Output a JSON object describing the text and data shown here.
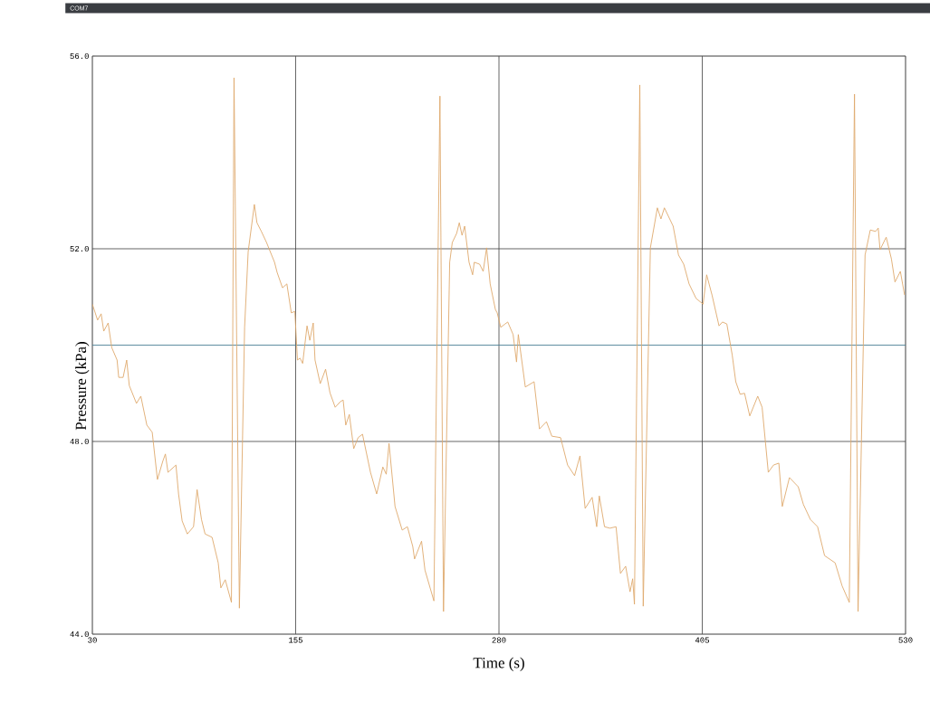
{
  "chart_data": {
    "type": "line",
    "title": "COM7",
    "xlabel": "Time (s)",
    "ylabel": "Pressure (kPa)",
    "xlim": [
      30,
      530
    ],
    "ylim": [
      44,
      56
    ],
    "xticks": [
      30,
      155,
      280,
      405,
      530
    ],
    "yticks": [
      {
        "value": 44,
        "label": "44.0"
      },
      {
        "value": 48,
        "label": "48.0"
      },
      {
        "value": 52,
        "label": "52.0"
      },
      {
        "value": 56,
        "label": "56.0"
      }
    ],
    "grid": true,
    "line_style": "solid",
    "series": [
      {
        "color": "#4a7f95",
        "x": [
          30,
          530
        ],
        "values": [
          50,
          50
        ]
      },
      {
        "color": "#dfa96c",
        "x": [
          30,
          33.2,
          35.4,
          37.0,
          39.7,
          41.9,
          45.2,
          46.2,
          48.9,
          51.1,
          52.7,
          57.1,
          59.8,
          63.5,
          66.8,
          70.0,
          73.3,
          74.9,
          76.5,
          81.4,
          83.0,
          85.2,
          88.4,
          92.2,
          94.4,
          97.1,
          99.3,
          103.6,
          107.4,
          109.0,
          111.7,
          115.5,
          117.1,
          120.4,
          123.6,
          125.8,
          129.6,
          131.2,
          133.9,
          137.1,
          142.0,
          143.6,
          146.9,
          149.6,
          152.3,
          154.5,
          156.1,
          157.7,
          159.3,
          162.0,
          163.7,
          165.8,
          166.9,
          170.1,
          173.4,
          176.1,
          179.3,
          182.6,
          184.2,
          185.8,
          188.0,
          190.7,
          193.4,
          196.1,
          201.0,
          204.8,
          208.6,
          210.7,
          212.4,
          216.1,
          220.5,
          223.7,
          227.0,
          228.1,
          232.4,
          234.5,
          240.0,
          243.7,
          245.9,
          249.7,
          251.3,
          254.0,
          255.6,
          257.3,
          258.9,
          261.6,
          263.8,
          264.8,
          268.1,
          270.3,
          272.4,
          274.6,
          277.8,
          278.9,
          281.1,
          283.8,
          285.4,
          288.7,
          290.8,
          291.9,
          296.2,
          301.6,
          304.9,
          309.2,
          312.5,
          317.9,
          322.2,
          326.5,
          329.8,
          333.0,
          337.3,
          340.1,
          341.7,
          344.9,
          348.2,
          352.0,
          354.7,
          357.9,
          360.6,
          362.2,
          363.3,
          366.6,
          368.7,
          373.1,
          377.4,
          379.6,
          381.7,
          387.1,
          390.4,
          393.6,
          396.9,
          401.2,
          405.5,
          407.7,
          411.0,
          415.3,
          417.4,
          420.1,
          423.4,
          425.6,
          428.3,
          431.0,
          434.2,
          439.1,
          441.8,
          445.6,
          448.8,
          452.1,
          454.2,
          458.6,
          464.0,
          467.2,
          471.5,
          475.9,
          480.2,
          486.7,
          491.0,
          495.4,
          498.6,
          500.8,
          505.1,
          508.3,
          511.6,
          513.2,
          514.3,
          518.1,
          521.3,
          523.5,
          526.8,
          529.4
        ],
        "values": [
          50.85,
          50.52,
          50.65,
          50.29,
          50.46,
          49.95,
          49.69,
          49.33,
          49.33,
          49.69,
          49.16,
          48.79,
          48.94,
          48.34,
          48.19,
          47.21,
          47.59,
          47.74,
          47.36,
          47.51,
          46.91,
          46.35,
          46.08,
          46.23,
          47.0,
          46.38,
          46.08,
          46.01,
          45.48,
          44.96,
          45.13,
          44.66,
          55.55,
          44.54,
          50.37,
          51.94,
          52.92,
          52.54,
          52.36,
          52.13,
          51.72,
          51.51,
          51.19,
          51.27,
          50.67,
          50.7,
          49.69,
          49.73,
          49.62,
          50.4,
          50.1,
          50.46,
          49.69,
          49.2,
          49.5,
          49.01,
          48.71,
          48.83,
          48.86,
          48.34,
          48.56,
          47.85,
          48.08,
          48.15,
          47.36,
          46.91,
          47.47,
          47.32,
          47.96,
          46.65,
          46.16,
          46.23,
          45.82,
          45.56,
          45.93,
          45.33,
          44.69,
          55.17,
          44.47,
          51.72,
          52.13,
          52.32,
          52.54,
          52.28,
          52.47,
          51.72,
          51.46,
          51.72,
          51.68,
          51.53,
          52.02,
          51.27,
          50.74,
          50.67,
          50.37,
          50.44,
          50.48,
          50.22,
          49.65,
          50.22,
          49.13,
          49.24,
          48.26,
          48.41,
          48.11,
          48.08,
          47.51,
          47.29,
          47.7,
          46.61,
          46.84,
          46.23,
          46.87,
          46.23,
          46.2,
          46.23,
          45.26,
          45.41,
          44.88,
          45.15,
          44.62,
          55.4,
          44.58,
          52.02,
          52.85,
          52.62,
          52.85,
          52.47,
          51.87,
          51.68,
          51.27,
          50.97,
          50.85,
          51.46,
          51.04,
          50.4,
          50.48,
          50.44,
          49.8,
          49.24,
          48.98,
          49.0,
          48.53,
          48.94,
          48.71,
          47.36,
          47.51,
          47.55,
          46.65,
          47.25,
          47.06,
          46.69,
          46.38,
          46.23,
          45.63,
          45.48,
          45.0,
          44.66,
          55.21,
          44.47,
          51.87,
          52.39,
          52.36,
          52.43,
          51.98,
          52.24,
          51.79,
          51.31,
          51.53,
          51.04
        ]
      }
    ]
  }
}
